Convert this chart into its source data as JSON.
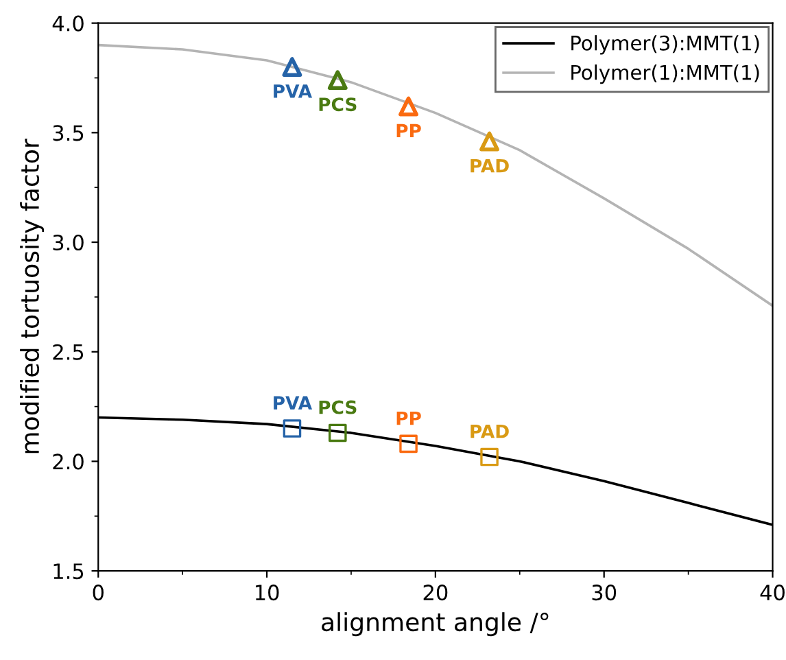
{
  "chart_data": {
    "type": "line",
    "xlabel": "alignment angle /°",
    "ylabel": "modified tortuosity factor",
    "xlim": [
      0,
      40
    ],
    "xticks": [
      0,
      10,
      20,
      30,
      40
    ],
    "ylim": [
      1.5,
      4.0
    ],
    "yticks": [
      1.5,
      {
        "value": 2,
        "label": "2.0"
      },
      2.5,
      {
        "value": 3,
        "label": "3.0"
      },
      3.5,
      {
        "value": 4,
        "label": "4.0"
      }
    ],
    "grid": false,
    "legend": "top right",
    "marker": "none",
    "line_style": "solid",
    "series": [
      {
        "name": "Polymer(3):MMT(1)",
        "color": "#000000",
        "x": [
          0,
          5,
          10,
          15,
          20,
          25,
          30,
          35,
          40
        ],
        "values": [
          2.2,
          2.19,
          2.17,
          2.13,
          2.07,
          2.0,
          1.91,
          1.81,
          1.71
        ]
      },
      {
        "name": "Polymer(1):MMT(1)",
        "color": "#b4b4b4",
        "x": [
          0,
          5,
          10,
          15,
          20,
          25,
          30,
          35,
          40
        ],
        "values": [
          3.9,
          3.88,
          3.83,
          3.73,
          3.59,
          3.42,
          3.2,
          2.97,
          2.71
        ]
      },
      {
        "name": "PVA",
        "type": "scatter",
        "marker": "triangle",
        "color": "#2563a8",
        "x": [
          11.5
        ],
        "values": [
          3.8
        ]
      },
      {
        "name": "PCS",
        "type": "scatter",
        "marker": "triangle",
        "color": "#4a7a12",
        "x": [
          14.2
        ],
        "values": [
          3.74
        ]
      },
      {
        "name": "PP",
        "type": "scatter",
        "marker": "triangle",
        "color": "#fa6a10",
        "x": [
          18.4
        ],
        "values": [
          3.62
        ]
      },
      {
        "name": "PAD",
        "type": "scatter",
        "marker": "triangle",
        "color": "#d99a14",
        "x": [
          23.2
        ],
        "values": [
          3.46
        ]
      },
      {
        "name": "PVA",
        "type": "scatter",
        "marker": "square",
        "color": "#2563a8",
        "x": [
          11.5
        ],
        "values": [
          2.15
        ]
      },
      {
        "name": "PCS",
        "type": "scatter",
        "marker": "square",
        "color": "#4a7a12",
        "x": [
          14.2
        ],
        "values": [
          2.13
        ]
      },
      {
        "name": "PP",
        "type": "scatter",
        "marker": "square",
        "color": "#fa6a10",
        "x": [
          18.4
        ],
        "values": [
          2.08
        ]
      },
      {
        "name": "PAD",
        "type": "scatter",
        "marker": "square",
        "color": "#d99a14",
        "x": [
          23.2
        ],
        "values": [
          2.02
        ]
      }
    ]
  }
}
